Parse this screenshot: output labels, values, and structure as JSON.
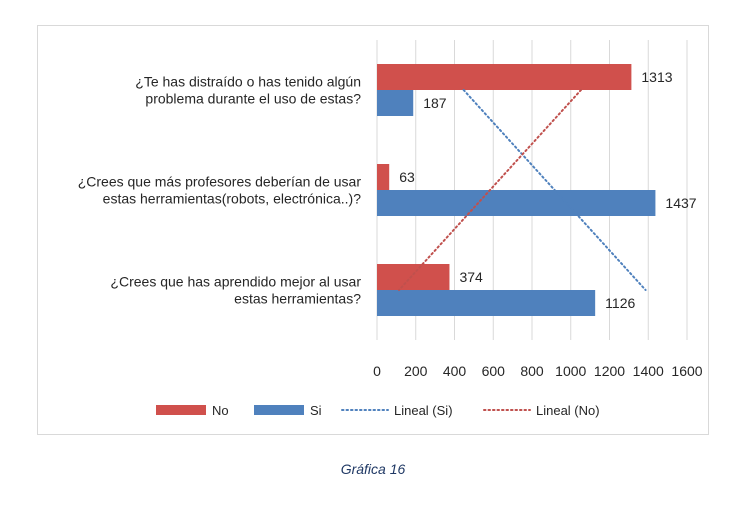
{
  "chart_data": {
    "type": "bar",
    "orientation": "horizontal",
    "categories": [
      [
        "¿Te has distraído o has tenido algún",
        "problema durante el uso de estas?"
      ],
      [
        "¿Crees que más profesores deberían de usar",
        "estas herramientas(robots, electrónica..)?"
      ],
      [
        "¿Crees que has aprendido mejor al usar",
        "estas herramientas?"
      ]
    ],
    "series": [
      {
        "name": "No",
        "values": [
          1313,
          63,
          374
        ],
        "color": "#d0504c"
      },
      {
        "name": "Si",
        "values": [
          187,
          1437,
          1126
        ],
        "color": "#4f81bd"
      }
    ],
    "trendlines": [
      {
        "name": "Lineal (Si)",
        "color": "#4f81bd",
        "style": "dotted"
      },
      {
        "name": "Lineal (No)",
        "color": "#c0504d",
        "style": "dotted"
      }
    ],
    "xlim": [
      0,
      1600
    ],
    "xticks": [
      0,
      200,
      400,
      600,
      800,
      1000,
      1200,
      1400,
      1600
    ],
    "grid": "vertical",
    "legend": "bottom",
    "data_labels": true
  },
  "caption": "Gráfica 16"
}
